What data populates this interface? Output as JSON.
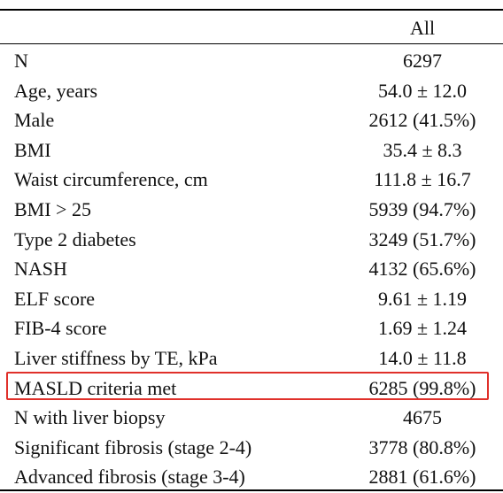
{
  "table": {
    "column_header": "All",
    "rows": [
      {
        "label": "N",
        "value": "6297"
      },
      {
        "label": "Age, years",
        "value": "54.0 ± 12.0"
      },
      {
        "label": "Male",
        "value": "2612 (41.5%)"
      },
      {
        "label": "BMI",
        "value": "35.4 ± 8.3"
      },
      {
        "label": "Waist circumference, cm",
        "value": "111.8 ± 16.7"
      },
      {
        "label": "BMI > 25",
        "value": "5939 (94.7%)"
      },
      {
        "label": "Type 2 diabetes",
        "value": "3249 (51.7%)"
      },
      {
        "label": "NASH",
        "value": "4132 (65.6%)"
      },
      {
        "label": "ELF score",
        "value": "9.61 ± 1.19"
      },
      {
        "label": "FIB-4 score",
        "value": "1.69 ± 1.24"
      },
      {
        "label": "Liver stiffness by TE, kPa",
        "value": "14.0 ± 11.8"
      },
      {
        "label": "MASLD criteria met",
        "value": "6285 (99.8%)"
      },
      {
        "label": "N with liver biopsy",
        "value": "4675"
      },
      {
        "label": "Significant fibrosis (stage 2-4)",
        "value": "3778 (80.8%)"
      },
      {
        "label": "Advanced fibrosis (stage 3-4)",
        "value": "2881 (61.6%)"
      }
    ],
    "highlighted_row_label": "MASLD criteria met",
    "highlight_color": "#e0302a"
  }
}
